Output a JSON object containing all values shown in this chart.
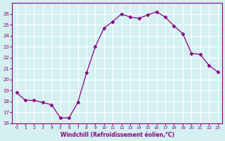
{
  "x": [
    0,
    1,
    2,
    3,
    4,
    5,
    6,
    7,
    8,
    9,
    10,
    11,
    12,
    13,
    14,
    15,
    16,
    17,
    18,
    19,
    20,
    21,
    22,
    23
  ],
  "y": [
    18.8,
    18.1,
    18.1,
    17.9,
    17.7,
    16.5,
    16.5,
    17.9,
    20.6,
    23.0,
    24.7,
    25.3,
    26.0,
    25.7,
    25.6,
    25.9,
    26.2,
    25.7,
    24.9,
    24.2,
    22.4,
    22.3,
    21.3,
    20.7
  ],
  "line_color": "#8B008B",
  "marker": "D",
  "marker_size": 2.5,
  "bg_color": "#d4f0f0",
  "grid_color": "#ffffff",
  "xlabel": "Windchill (Refroidissement éolien,°C)",
  "xlabel_color": "#8B008B",
  "tick_color": "#8B008B",
  "xlim": [
    -0.5,
    23.5
  ],
  "ylim": [
    16,
    27
  ],
  "yticks": [
    16,
    17,
    18,
    19,
    20,
    21,
    22,
    23,
    24,
    25,
    26
  ],
  "xticks": [
    0,
    1,
    2,
    3,
    4,
    5,
    6,
    7,
    8,
    9,
    10,
    11,
    12,
    13,
    14,
    15,
    16,
    17,
    18,
    19,
    20,
    21,
    22,
    23
  ]
}
